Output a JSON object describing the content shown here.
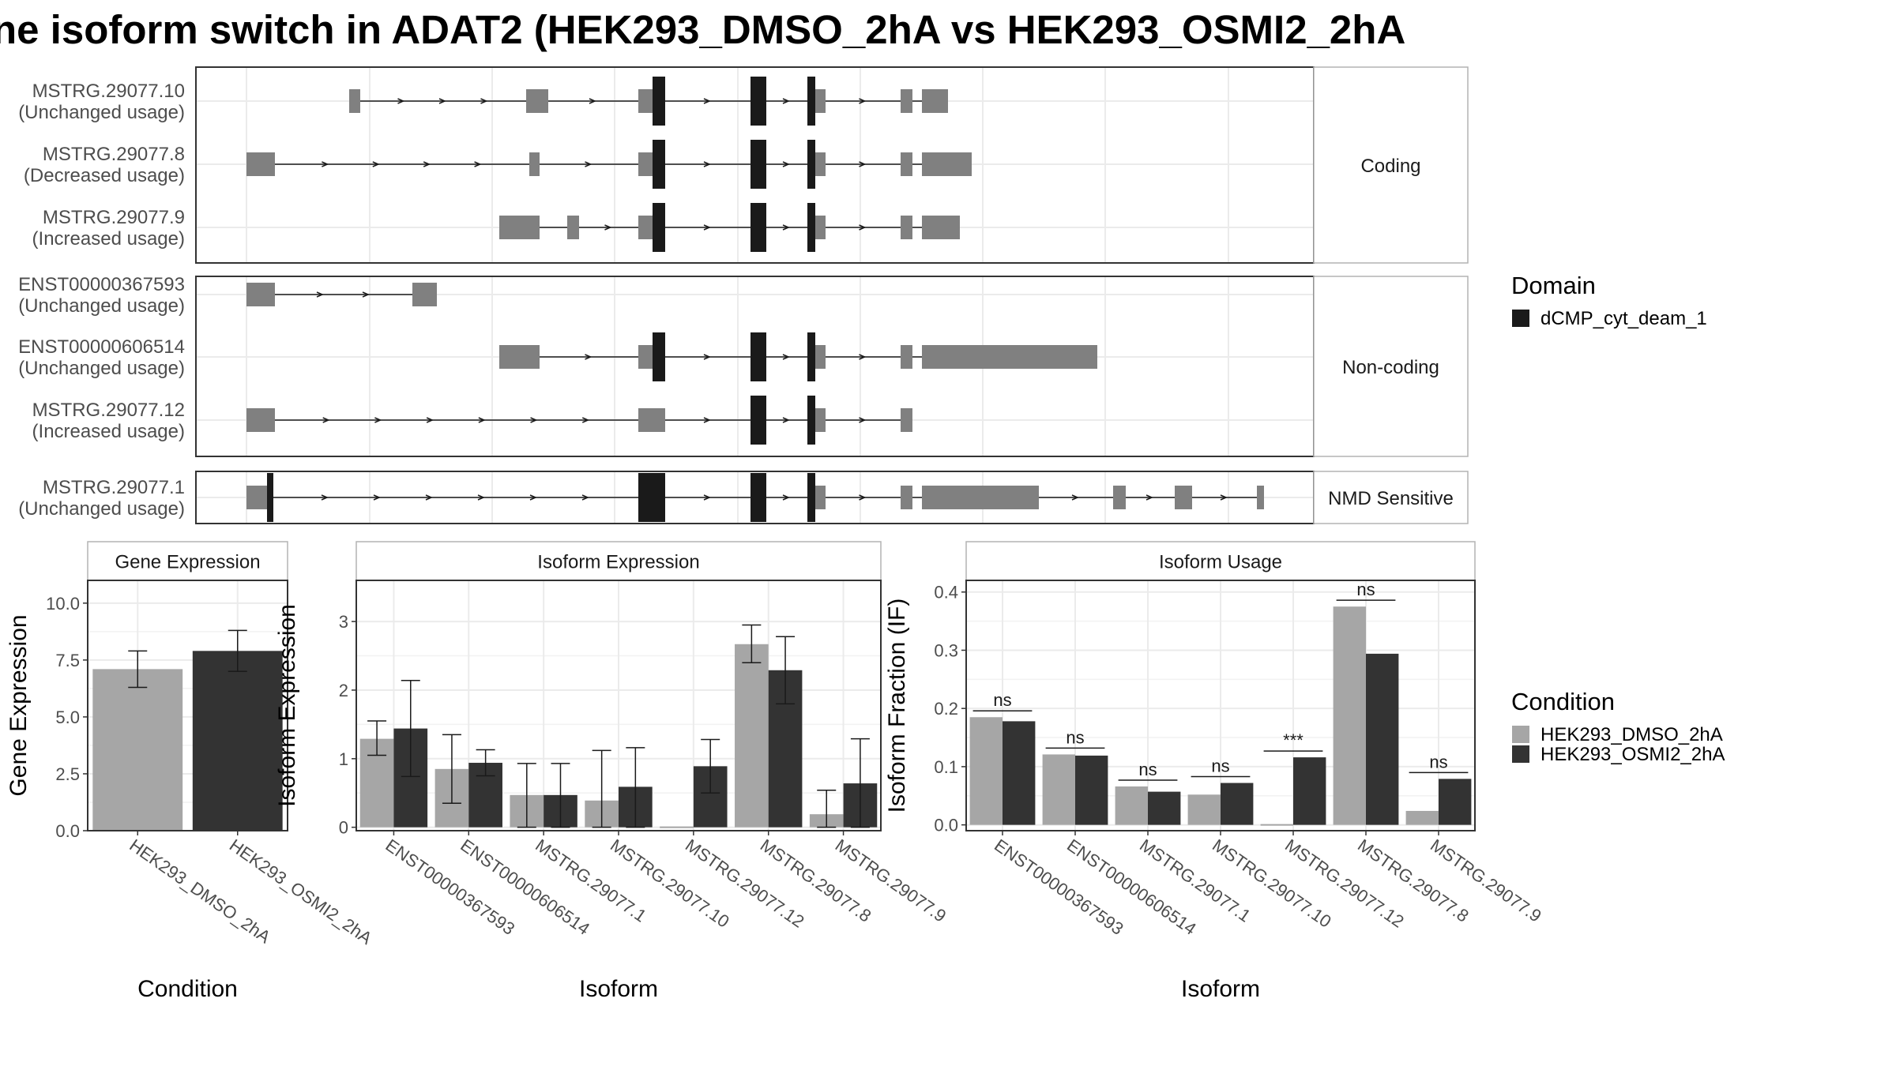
{
  "title": "ne isoform switch in ADAT2 (HEK293_DMSO_2hA vs HEK293_OSMI2_2hA",
  "colors": {
    "dmso": "#a6a6a6",
    "osmi": "#333333",
    "exon": "#808080",
    "domain": "#1a1a1a",
    "grid": "#ebebeb",
    "panel_border": "#333333"
  },
  "isoform_structure": {
    "groups": [
      {
        "label": "Coding",
        "isoforms": [
          {
            "id": "MSTRG.29077.10",
            "usage": "(Unchanged usage)"
          },
          {
            "id": "MSTRG.29077.8",
            "usage": "(Decreased usage)"
          },
          {
            "id": "MSTRG.29077.9",
            "usage": "(Increased usage)"
          }
        ]
      },
      {
        "label": "Non-coding",
        "isoforms": [
          {
            "id": "ENST00000367593",
            "usage": "(Unchanged usage)"
          },
          {
            "id": "ENST00000606514",
            "usage": "(Unchanged usage)"
          },
          {
            "id": "MSTRG.29077.12",
            "usage": "(Increased usage)"
          }
        ]
      },
      {
        "label": "NMD Sensitive",
        "isoforms": [
          {
            "id": "MSTRG.29077.1",
            "usage": "(Unchanged usage)"
          }
        ]
      }
    ]
  },
  "legends": {
    "domain_title": "Domain",
    "domain_item": "dCMP_cyt_deam_1",
    "condition_title": "Condition",
    "condition_items": [
      "HEK293_DMSO_2hA",
      "HEK293_OSMI2_2hA"
    ]
  },
  "chart_data": [
    {
      "type": "bar",
      "title": "Gene Expression",
      "xlabel": "Condition",
      "ylabel": "Gene Expression",
      "ylim": [
        0,
        11
      ],
      "yticks": [
        "0.0",
        "2.5",
        "5.0",
        "7.5",
        "10.0"
      ],
      "categories": [
        "HEK293_DMSO_2hA",
        "HEK293_OSMI2_2hA"
      ],
      "values": [
        7.1,
        7.9
      ],
      "err_low": [
        6.3,
        7.0
      ],
      "err_high": [
        7.9,
        8.8
      ]
    },
    {
      "type": "bar",
      "title": "Isoform Expression",
      "xlabel": "Isoform",
      "ylabel": "Isoform Expression",
      "ylim": [
        -0.05,
        3.6
      ],
      "yticks": [
        "0",
        "1",
        "2",
        "3"
      ],
      "categories": [
        "ENST00000367593",
        "ENST00000606514",
        "MSTRG.29077.1",
        "MSTRG.29077.10",
        "MSTRG.29077.12",
        "MSTRG.29077.8",
        "MSTRG.29077.9"
      ],
      "series": [
        {
          "name": "HEK293_DMSO_2hA",
          "values": [
            1.29,
            0.85,
            0.47,
            0.39,
            0.0,
            2.67,
            0.19
          ],
          "err_low": [
            1.05,
            0.35,
            0.0,
            0.0,
            0.0,
            2.4,
            0.0
          ],
          "err_high": [
            1.55,
            1.35,
            0.93,
            1.12,
            0.0,
            2.95,
            0.54
          ]
        },
        {
          "name": "HEK293_OSMI2_2hA",
          "values": [
            1.44,
            0.94,
            0.47,
            0.59,
            0.89,
            2.29,
            0.64
          ],
          "err_low": [
            0.74,
            0.75,
            0.0,
            0.0,
            0.5,
            1.8,
            0.0
          ],
          "err_high": [
            2.14,
            1.13,
            0.93,
            1.16,
            1.28,
            2.78,
            1.29
          ]
        }
      ]
    },
    {
      "type": "bar",
      "title": "Isoform Usage",
      "xlabel": "Isoform",
      "ylabel": "Isoform Fraction (IF)",
      "ylim": [
        -0.01,
        0.42
      ],
      "yticks": [
        "0.0",
        "0.1",
        "0.2",
        "0.3",
        "0.4"
      ],
      "categories": [
        "ENST00000367593",
        "ENST00000606514",
        "MSTRG.29077.1",
        "MSTRG.29077.10",
        "MSTRG.29077.12",
        "MSTRG.29077.8",
        "MSTRG.29077.9"
      ],
      "series": [
        {
          "name": "HEK293_DMSO_2hA",
          "values": [
            0.185,
            0.121,
            0.066,
            0.052,
            0.0,
            0.375,
            0.024
          ]
        },
        {
          "name": "HEK293_OSMI2_2hA",
          "values": [
            0.178,
            0.119,
            0.057,
            0.072,
            0.116,
            0.294,
            0.079
          ]
        }
      ],
      "significance": [
        "ns",
        "ns",
        "ns",
        "ns",
        "***",
        "ns",
        "ns"
      ]
    }
  ]
}
